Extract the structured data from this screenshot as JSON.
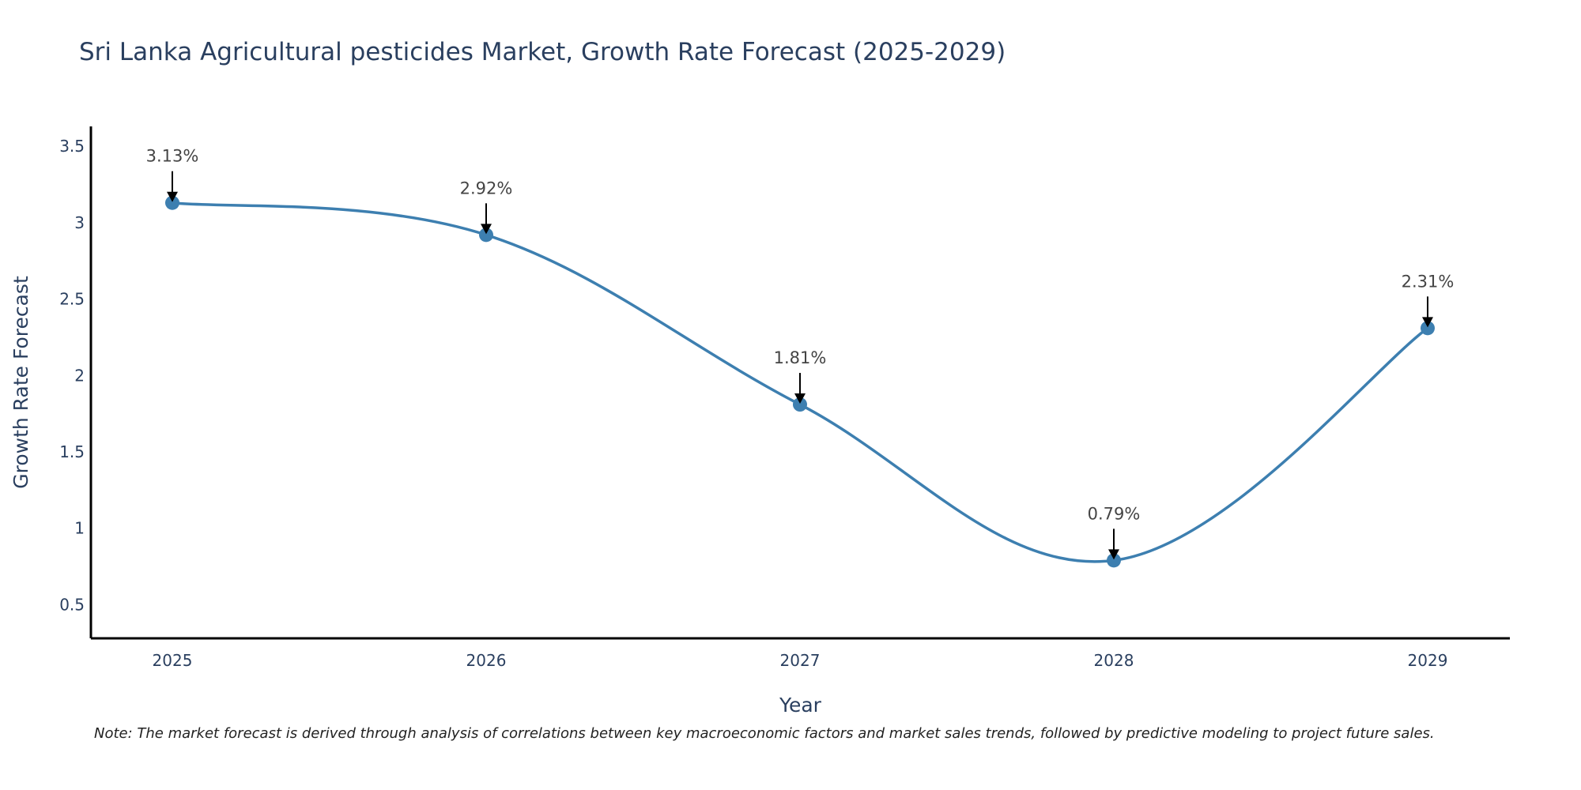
{
  "chart_data": {
    "type": "line",
    "title": "Sri Lanka Agricultural pesticides Market, Growth Rate Forecast (2025-2029)",
    "xlabel": "Year",
    "ylabel": "Growth Rate Forecast",
    "categories": [
      "2025",
      "2026",
      "2027",
      "2028",
      "2029"
    ],
    "values": [
      3.13,
      2.92,
      1.81,
      0.79,
      2.31
    ],
    "data_labels": [
      "3.13%",
      "2.92%",
      "1.81%",
      "0.79%",
      "2.31%"
    ],
    "y_ticks": [
      0.5,
      1,
      1.5,
      2,
      2.5,
      3,
      3.5
    ],
    "y_tick_labels": [
      "0.5",
      "1",
      "1.5",
      "2",
      "2.5",
      "3",
      "3.5"
    ],
    "ylim": [
      0.28,
      3.63
    ],
    "grid": false,
    "line_shape": "spline",
    "series_color": "#3d7fb0",
    "arrow_color": "#000000"
  },
  "note": "Note: The market forecast is derived through analysis of correlations between key macroeconomic factors and market sales trends, followed by predictive modeling to project future sales."
}
